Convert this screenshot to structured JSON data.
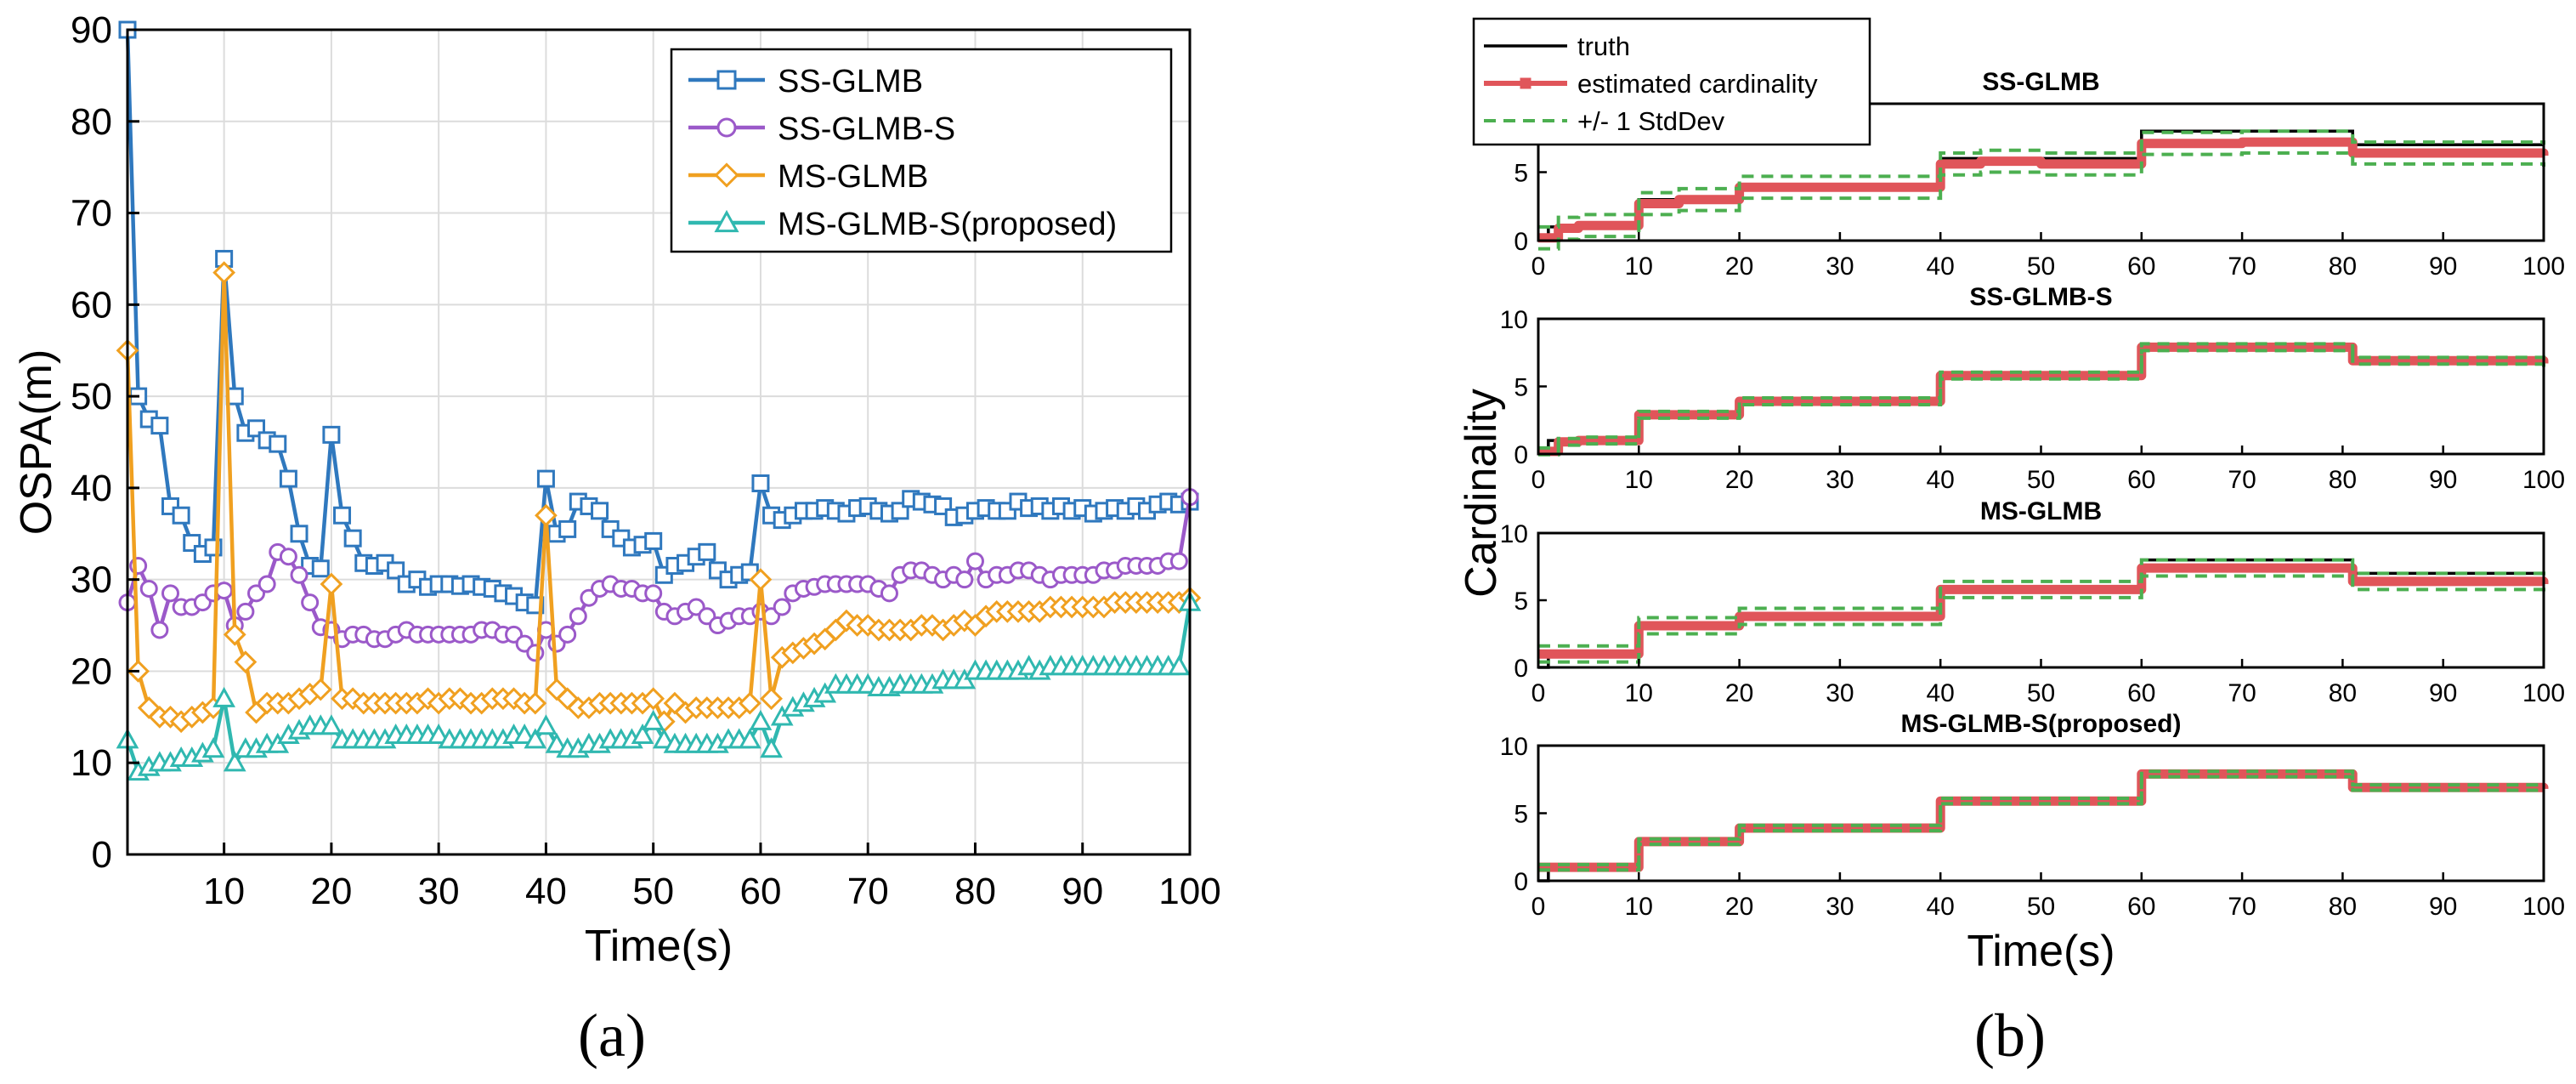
{
  "panel_labels": {
    "a": "(a)",
    "b": "(b)"
  },
  "chart_data": [
    {
      "type": "line",
      "xlabel": "Time(s)",
      "ylabel": "OSPA(m)",
      "xlim": [
        1,
        100
      ],
      "ylim": [
        0,
        90
      ],
      "xticks": [
        10,
        20,
        30,
        40,
        50,
        60,
        70,
        80,
        90,
        100
      ],
      "yticks": [
        0,
        10,
        20,
        30,
        40,
        50,
        60,
        70,
        80,
        90
      ],
      "grid": true,
      "legend_position": "top-right",
      "x": [
        1,
        2,
        3,
        4,
        5,
        6,
        7,
        8,
        9,
        10,
        11,
        12,
        13,
        14,
        15,
        16,
        17,
        18,
        19,
        20,
        21,
        22,
        23,
        24,
        25,
        26,
        27,
        28,
        29,
        30,
        31,
        32,
        33,
        34,
        35,
        36,
        37,
        38,
        39,
        40,
        41,
        42,
        43,
        44,
        45,
        46,
        47,
        48,
        49,
        50,
        51,
        52,
        53,
        54,
        55,
        56,
        57,
        58,
        59,
        60,
        61,
        62,
        63,
        64,
        65,
        66,
        67,
        68,
        69,
        70,
        71,
        72,
        73,
        74,
        75,
        76,
        77,
        78,
        79,
        80,
        81,
        82,
        83,
        84,
        85,
        86,
        87,
        88,
        89,
        90,
        91,
        92,
        93,
        94,
        95,
        96,
        97,
        98,
        99,
        100
      ],
      "series": [
        {
          "name": "SS-GLMB",
          "color": "#2f78be",
          "marker": "square",
          "values": [
            90,
            50,
            47.5,
            46.8,
            38,
            37,
            34,
            32.8,
            33.5,
            65,
            50,
            46,
            46.5,
            45.2,
            44.8,
            41,
            35,
            31.5,
            31.2,
            45.8,
            37,
            34.5,
            31.8,
            31.5,
            31.8,
            31,
            29.5,
            30,
            29.2,
            29.5,
            29.5,
            29.3,
            29.5,
            29.2,
            29,
            28.5,
            28.2,
            27.5,
            27.2,
            41,
            35,
            35.5,
            38.5,
            38,
            37.5,
            35.5,
            34.5,
            33.5,
            33.8,
            34.2,
            30.5,
            31.5,
            31.8,
            32.5,
            33,
            31,
            30,
            30.5,
            30.8,
            40.5,
            37,
            36.5,
            37,
            37.5,
            37.5,
            37.8,
            37.5,
            37.2,
            37.8,
            38,
            37.5,
            37.2,
            37.5,
            38.8,
            38.5,
            38.2,
            38,
            36.8,
            37,
            37.5,
            37.8,
            37.5,
            37.5,
            38.5,
            37.8,
            38,
            37.5,
            38,
            37.5,
            37.8,
            37.2,
            37.5,
            37.8,
            37.5,
            38,
            37.5,
            38.2,
            38.5,
            38.2,
            38.5
          ]
        },
        {
          "name": "SS-GLMB-S",
          "color": "#9b59c9",
          "marker": "circle",
          "values": [
            27.5,
            31.5,
            29,
            24.5,
            28.5,
            27,
            27,
            27.5,
            28.5,
            28.8,
            25,
            26.5,
            28.5,
            29.5,
            33,
            32.5,
            30.5,
            27.5,
            24.8,
            24.5,
            23.5,
            24,
            24,
            23.5,
            23.5,
            24,
            24.5,
            24,
            24,
            24,
            24,
            24,
            24,
            24.5,
            24.5,
            24,
            24,
            23,
            22,
            24.5,
            23,
            24,
            26,
            28,
            29,
            29.5,
            29,
            29,
            28.5,
            28.5,
            26.5,
            26,
            26.5,
            27,
            26,
            25,
            25.5,
            26,
            26,
            26.5,
            26,
            27,
            28.5,
            29,
            29.2,
            29.5,
            29.5,
            29.5,
            29.5,
            29.5,
            29,
            28.5,
            30.5,
            31,
            31,
            30.5,
            30,
            30.5,
            30,
            32,
            30,
            30.5,
            30.5,
            31,
            31,
            30.5,
            30,
            30.5,
            30.5,
            30.5,
            30.5,
            31,
            31,
            31.5,
            31.5,
            31.5,
            31.5,
            32,
            32,
            39
          ]
        },
        {
          "name": "MS-GLMB",
          "color": "#f0a020",
          "marker": "diamond",
          "values": [
            55,
            20,
            16,
            15,
            15,
            14.5,
            15,
            15.5,
            16,
            63.5,
            24,
            21,
            15.5,
            16.5,
            16.5,
            16.5,
            17,
            17.5,
            18,
            29.5,
            17,
            17,
            16.5,
            16.5,
            16.5,
            16.5,
            16.5,
            16.5,
            17,
            16.5,
            17,
            17,
            16.5,
            16.5,
            17,
            17,
            17,
            16.5,
            16.5,
            37,
            18,
            17,
            16,
            16,
            16.5,
            16.5,
            16.5,
            16.5,
            16.5,
            17,
            14.5,
            16.5,
            15.5,
            16,
            16,
            16,
            16,
            16,
            16.5,
            30,
            17,
            21.5,
            22,
            22.5,
            23,
            23.5,
            24.5,
            25.5,
            25,
            25,
            24.5,
            24.5,
            24.5,
            24.5,
            25,
            25,
            24.5,
            25,
            25.5,
            25,
            26,
            26.5,
            26.5,
            26.5,
            26.5,
            26.5,
            27,
            27,
            27,
            27,
            27,
            27,
            27.5,
            27.5,
            27.5,
            27.5,
            27.5,
            27.5,
            27.5,
            28
          ]
        },
        {
          "name": "MS-GLMB-S(proposed)",
          "color": "#30b8b0",
          "marker": "triangle",
          "values": [
            12.5,
            9,
            9.5,
            10,
            10,
            10.5,
            10.5,
            11,
            11.5,
            17,
            10,
            11.5,
            11.5,
            12,
            12,
            13,
            13.5,
            14,
            14,
            14,
            12.5,
            12.5,
            12.5,
            12.5,
            12.5,
            13,
            13,
            13,
            13,
            13,
            12.5,
            12.5,
            12.5,
            12.5,
            12.5,
            12.5,
            13,
            13,
            12.5,
            14,
            12,
            11.5,
            11.5,
            12,
            12,
            12.5,
            12.5,
            12.5,
            13,
            14.5,
            12.5,
            12,
            12,
            12,
            12,
            12,
            12.5,
            12.5,
            12.5,
            14.5,
            11.5,
            15,
            16,
            16.5,
            17,
            17.5,
            18.5,
            18.5,
            18.5,
            18.5,
            18.2,
            18.2,
            18.5,
            18.5,
            18.5,
            18.5,
            19,
            19,
            19,
            20,
            20,
            20,
            20,
            20,
            20.5,
            20,
            20.5,
            20.5,
            20.5,
            20.5,
            20.5,
            20.5,
            20.5,
            20.5,
            20.5,
            20.5,
            20.5,
            20.5,
            20.5,
            27.5
          ]
        }
      ]
    },
    {
      "type": "line",
      "xlabel": "Time(s)",
      "ylabel": "Cardinality",
      "legend_position": "top-left",
      "legend": [
        {
          "name": "truth",
          "color": "#000000",
          "style": "solid"
        },
        {
          "name": "estimated cardinality",
          "color": "#e0555a",
          "style": "solid-square"
        },
        {
          "name": "+/- 1 StdDev",
          "color": "#4caf50",
          "style": "dashed"
        }
      ],
      "xlim": [
        0,
        100
      ],
      "ylim": [
        0,
        10
      ],
      "xticks": [
        0,
        10,
        20,
        30,
        40,
        50,
        60,
        70,
        80,
        90,
        100
      ],
      "yticks": [
        0,
        5,
        10
      ],
      "truth_steps": [
        [
          0,
          0
        ],
        [
          1,
          1
        ],
        [
          10,
          3
        ],
        [
          20,
          4
        ],
        [
          40,
          6
        ],
        [
          60,
          8
        ],
        [
          81,
          7
        ],
        [
          100,
          7
        ]
      ],
      "subplots": [
        {
          "title": "SS-GLMB",
          "estimate_steps": [
            [
              0,
              0.2
            ],
            [
              2,
              0.9
            ],
            [
              4,
              1.1
            ],
            [
              10,
              2.7
            ],
            [
              14,
              3
            ],
            [
              20,
              3.9
            ],
            [
              40,
              5.6
            ],
            [
              44,
              5.8
            ],
            [
              50,
              5.6
            ],
            [
              60,
              7.1
            ],
            [
              70,
              7.2
            ],
            [
              81,
              6.4
            ],
            [
              100,
              6.2
            ]
          ],
          "std": 0.8
        },
        {
          "title": "SS-GLMB-S",
          "estimate_steps": [
            [
              0,
              0.2
            ],
            [
              2,
              0.9
            ],
            [
              4,
              1.0
            ],
            [
              10,
              2.9
            ],
            [
              20,
              3.9
            ],
            [
              40,
              5.8
            ],
            [
              60,
              7.9
            ],
            [
              81,
              6.9
            ],
            [
              100,
              6.7
            ]
          ],
          "std": 0.25
        },
        {
          "title": "MS-GLMB",
          "estimate_steps": [
            [
              0,
              1.0
            ],
            [
              10,
              3.1
            ],
            [
              20,
              3.8
            ],
            [
              40,
              5.8
            ],
            [
              60,
              7.4
            ],
            [
              81,
              6.4
            ],
            [
              100,
              6.2
            ]
          ],
          "std": 0.6
        },
        {
          "title": "MS-GLMB-S(proposed)",
          "estimate_steps": [
            [
              0,
              1.0
            ],
            [
              10,
              2.9
            ],
            [
              20,
              3.9
            ],
            [
              40,
              5.9
            ],
            [
              60,
              7.9
            ],
            [
              81,
              6.9
            ],
            [
              100,
              6.8
            ]
          ],
          "std": 0.2
        }
      ]
    }
  ]
}
